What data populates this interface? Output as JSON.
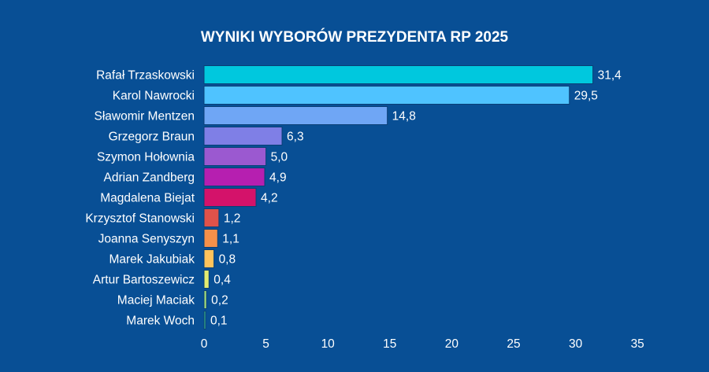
{
  "chart_data": {
    "type": "bar",
    "orientation": "horizontal",
    "title": "WYNIKI WYBORÓW PREZYDENTA RP 2025",
    "xlabel": "",
    "ylabel": "",
    "xlim": [
      0,
      35
    ],
    "xticks": [
      0,
      5,
      10,
      15,
      20,
      25,
      30,
      35
    ],
    "grid": false,
    "categories": [
      "Rafał Trzaskowski",
      "Karol Nawrocki",
      "Sławomir Mentzen",
      "Grzegorz Braun",
      "Szymon Hołownia",
      "Adrian Zandberg",
      "Magdalena Biejat",
      "Krzysztof Stanowski",
      "Joanna Senyszyn",
      "Marek Jakubiak",
      "Artur Bartoszewicz",
      "Maciej Maciak",
      "Marek Woch"
    ],
    "values": [
      31.4,
      29.5,
      14.8,
      6.3,
      5.0,
      4.9,
      4.2,
      1.2,
      1.1,
      0.8,
      0.4,
      0.2,
      0.1
    ],
    "value_labels": [
      "31,4",
      "29,5",
      "14,8",
      "6,3",
      "5,0",
      "4,9",
      "4,2",
      "1,2",
      "1,1",
      "0,8",
      "0,4",
      "0,2",
      "0,1"
    ],
    "colors": [
      "#00c8de",
      "#4fc3ff",
      "#6fa6f5",
      "#7f7fe6",
      "#9b59d0",
      "#b61fb0",
      "#d4126a",
      "#e0524a",
      "#f5904a",
      "#ffc35c",
      "#e3ec70",
      "#a6e07a",
      "#3fc28a"
    ]
  },
  "colors": {
    "background": "#084f95",
    "text": "#ffffff",
    "bar_stroke": "#0a3f76"
  }
}
